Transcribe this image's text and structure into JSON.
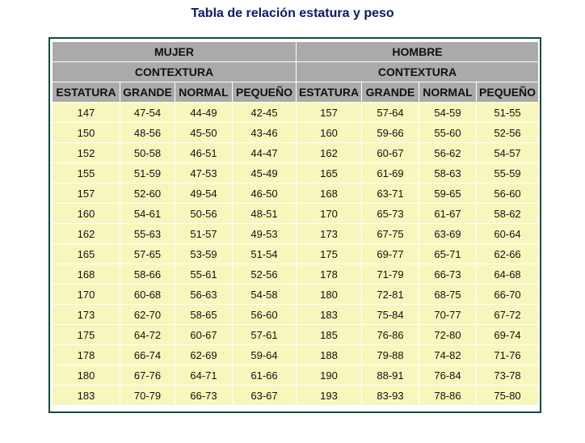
{
  "title": "Tabla de relación estatura y peso",
  "groups": [
    "MUJER",
    "HOMBRE"
  ],
  "subheader": "CONTEXTURA",
  "columns": [
    "ESTATURA",
    "GRANDE",
    "NORMAL",
    "PEQUEÑO"
  ],
  "rows": [
    [
      "147",
      "47-54",
      "44-49",
      "42-45",
      "157",
      "57-64",
      "54-59",
      "51-55"
    ],
    [
      "150",
      "48-56",
      "45-50",
      "43-46",
      "160",
      "59-66",
      "55-60",
      "52-56"
    ],
    [
      "152",
      "50-58",
      "46-51",
      "44-47",
      "162",
      "60-67",
      "56-62",
      "54-57"
    ],
    [
      "155",
      "51-59",
      "47-53",
      "45-49",
      "165",
      "61-69",
      "58-63",
      "55-59"
    ],
    [
      "157",
      "52-60",
      "49-54",
      "46-50",
      "168",
      "63-71",
      "59-65",
      "56-60"
    ],
    [
      "160",
      "54-61",
      "50-56",
      "48-51",
      "170",
      "65-73",
      "61-67",
      "58-62"
    ],
    [
      "162",
      "55-63",
      "51-57",
      "49-53",
      "173",
      "67-75",
      "63-69",
      "60-64"
    ],
    [
      "165",
      "57-65",
      "53-59",
      "51-54",
      "175",
      "69-77",
      "65-71",
      "62-66"
    ],
    [
      "168",
      "58-66",
      "55-61",
      "52-56",
      "178",
      "71-79",
      "66-73",
      "64-68"
    ],
    [
      "170",
      "60-68",
      "56-63",
      "54-58",
      "180",
      "72-81",
      "68-75",
      "66-70"
    ],
    [
      "173",
      "62-70",
      "58-65",
      "56-60",
      "183",
      "75-84",
      "70-77",
      "67-72"
    ],
    [
      "175",
      "64-72",
      "60-67",
      "57-61",
      "185",
      "76-86",
      "72-80",
      "69-74"
    ],
    [
      "178",
      "66-74",
      "62-69",
      "59-64",
      "188",
      "79-88",
      "74-82",
      "71-76"
    ],
    [
      "180",
      "67-76",
      "64-71",
      "61-66",
      "190",
      "88-91",
      "76-84",
      "73-78"
    ],
    [
      "183",
      "70-79",
      "66-73",
      "63-67",
      "193",
      "83-93",
      "78-86",
      "75-80"
    ]
  ]
}
